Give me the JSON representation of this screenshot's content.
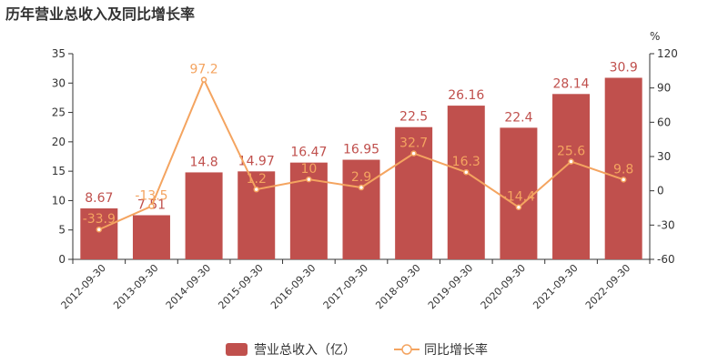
{
  "chart_data": {
    "type": "bar",
    "title": "历年营业总收入及同比增长率",
    "y2_unit": "%",
    "categories": [
      "2012-09-30",
      "2013-09-30",
      "2014-09-30",
      "2015-09-30",
      "2016-09-30",
      "2017-09-30",
      "2018-09-30",
      "2019-09-30",
      "2020-09-30",
      "2021-09-30",
      "2022-09-30"
    ],
    "series": [
      {
        "name": "营业总收入（亿）",
        "kind": "bar",
        "axis": "left",
        "color": "#c0504d",
        "values": [
          8.67,
          7.51,
          14.8,
          14.97,
          16.47,
          16.95,
          22.5,
          26.16,
          22.4,
          28.14,
          30.9
        ],
        "labels": [
          "8.67",
          "7.51",
          "14.8",
          "14.97",
          "16.47",
          "16.95",
          "22.5",
          "26.16",
          "22.4",
          "28.14",
          "30.9"
        ]
      },
      {
        "name": "同比增长率",
        "kind": "line",
        "axis": "right",
        "color": "#f4a460",
        "values": [
          -33.9,
          -13.5,
          97.2,
          1.2,
          10,
          2.9,
          32.7,
          16.3,
          -14.4,
          25.6,
          9.8
        ],
        "labels": [
          "-33.9",
          "-13.5",
          "97.2",
          "1.2",
          "10",
          "2.9",
          "32.7",
          "16.3",
          "-14.4",
          "25.6",
          "9.8"
        ]
      }
    ],
    "y_left": {
      "min": 0,
      "max": 35,
      "ticks": [
        "0",
        "5",
        "10",
        "15",
        "20",
        "25",
        "30",
        "35"
      ]
    },
    "y_right": {
      "min": -60,
      "max": 120,
      "ticks": [
        "-60",
        "-30",
        "0",
        "30",
        "60",
        "90",
        "120"
      ]
    },
    "grid": false,
    "legend_position": "bottom"
  }
}
